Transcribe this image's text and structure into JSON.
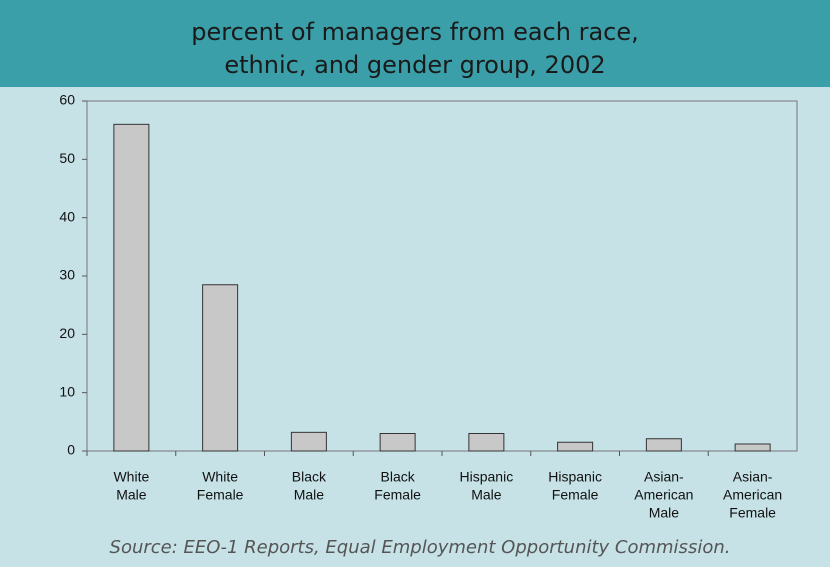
{
  "chart_data": {
    "type": "bar",
    "title": [
      "percent of managers from each race,",
      "ethnic, and gender group, 2002"
    ],
    "categories": [
      [
        "White",
        "Male"
      ],
      [
        "White",
        "Female"
      ],
      [
        "Black",
        "Male"
      ],
      [
        "Black",
        "Female"
      ],
      [
        "Hispanic",
        "Male"
      ],
      [
        "Hispanic",
        "Female"
      ],
      [
        "Asian-",
        "American",
        "Male"
      ],
      [
        "Asian-",
        "American",
        "Female"
      ]
    ],
    "values": [
      56,
      28.5,
      3.2,
      3.0,
      3.0,
      1.5,
      2.1,
      1.2
    ],
    "color": "#c8c8c8",
    "ylim": [
      0,
      60
    ],
    "yticks": [
      0,
      10,
      20,
      30,
      40,
      50,
      60
    ],
    "source": "Source: EEO-1 Reports, Equal Employment Opportunity Commission."
  }
}
